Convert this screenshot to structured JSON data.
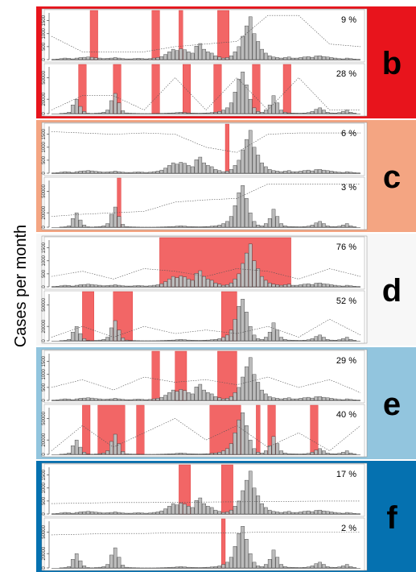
{
  "y_label": "Cases per month",
  "histograms": {
    "top": {
      "ylim": [
        0,
        1800
      ],
      "yticks": [
        0,
        500,
        1000,
        1500
      ],
      "values": [
        10,
        20,
        40,
        60,
        50,
        30,
        60,
        80,
        90,
        100,
        90,
        70,
        60,
        40,
        50,
        60,
        80,
        60,
        40,
        30,
        30,
        40,
        50,
        40,
        30,
        40,
        60,
        80,
        120,
        200,
        300,
        400,
        350,
        420,
        380,
        300,
        250,
        520,
        620,
        400,
        300,
        250,
        150,
        100,
        60,
        80,
        150,
        300,
        500,
        900,
        1300,
        1650,
        1000,
        700,
        400,
        250,
        150,
        100,
        80,
        60,
        80,
        100,
        60,
        60,
        80,
        100,
        120,
        90,
        140,
        150,
        120,
        100,
        80,
        60,
        40,
        30,
        60,
        40,
        20,
        10
      ]
    },
    "bottom": {
      "ylim": [
        0,
        65000
      ],
      "yticks": [
        0,
        20000,
        50000
      ],
      "values": [
        0,
        0,
        200,
        500,
        2000,
        12000,
        20000,
        10000,
        3000,
        500,
        200,
        500,
        1000,
        2000,
        5000,
        18000,
        28000,
        15000,
        4000,
        1000,
        500,
        300,
        200,
        100,
        100,
        100,
        100,
        200,
        300,
        500,
        800,
        1000,
        1500,
        2000,
        1500,
        1000,
        800,
        600,
        500,
        800,
        1000,
        1500,
        2000,
        3000,
        5000,
        8000,
        15000,
        30000,
        48000,
        58000,
        40000,
        20000,
        8000,
        3000,
        2000,
        5000,
        12000,
        25000,
        15000,
        5000,
        2000,
        1000,
        800,
        600,
        500,
        800,
        1500,
        3000,
        6000,
        8000,
        5000,
        2000,
        1000,
        800,
        1500,
        3000,
        5000,
        2000,
        500,
        0
      ]
    }
  },
  "threshold_months": [
    0,
    8,
    16,
    24,
    32,
    40,
    48,
    56,
    64,
    72,
    80
  ],
  "panels": [
    {
      "letter": "b",
      "color": "#e8141c",
      "top": {
        "percent": "9 %",
        "flags": [
          [
            10,
            11
          ],
          [
            26,
            27
          ],
          [
            33,
            33
          ],
          [
            43,
            45
          ]
        ],
        "threshold": [
          900,
          300,
          300,
          300,
          500,
          600,
          700,
          1700,
          1700,
          600,
          500
        ]
      },
      "bottom": {
        "percent": "28 %",
        "flags": [
          [
            7,
            8
          ],
          [
            16,
            17
          ],
          [
            26,
            27
          ],
          [
            34,
            35
          ],
          [
            42,
            43
          ],
          [
            52,
            53
          ],
          [
            60,
            61
          ]
        ],
        "threshold": [
          5000,
          25000,
          25000,
          5000,
          50000,
          5000,
          50000,
          5000,
          50000,
          5000,
          5000
        ]
      }
    },
    {
      "letter": "c",
      "color": "#f4a582",
      "top": {
        "percent": "6 %",
        "flags": [
          [
            45,
            45
          ]
        ],
        "threshold": [
          1600,
          1550,
          1500,
          1550,
          1500,
          1000,
          800,
          1500,
          1550,
          1550,
          1550
        ]
      },
      "bottom": {
        "percent": "3 %",
        "flags": [
          [
            17,
            17
          ]
        ],
        "threshold": [
          15000,
          18000,
          20000,
          22000,
          35000,
          38000,
          40000,
          60000,
          60000,
          60000,
          60000
        ]
      }
    },
    {
      "letter": "d",
      "color": "#f7f7f7",
      "top": {
        "percent": "76 %",
        "flags": [
          [
            28,
            61
          ]
        ],
        "threshold": [
          400,
          600,
          300,
          700,
          600,
          400,
          700,
          600,
          300,
          700,
          400
        ]
      },
      "bottom": {
        "percent": "52 %",
        "flags": [
          [
            8,
            10
          ],
          [
            16,
            20
          ],
          [
            44,
            47
          ]
        ],
        "threshold": [
          5000,
          20000,
          5000,
          20000,
          10000,
          15000,
          10000,
          20000,
          5000,
          30000,
          8000
        ]
      }
    },
    {
      "letter": "e",
      "color": "#92c5de",
      "top": {
        "percent": "29 %",
        "flags": [
          [
            26,
            27
          ],
          [
            32,
            34
          ],
          [
            43,
            47
          ]
        ],
        "threshold": [
          500,
          800,
          400,
          900,
          700,
          800,
          600,
          900,
          500,
          800,
          300
        ]
      },
      "bottom": {
        "percent": "40 %",
        "flags": [
          [
            8,
            9
          ],
          [
            12,
            18
          ],
          [
            22,
            23
          ],
          [
            41,
            48
          ],
          [
            53,
            53
          ],
          [
            56,
            57
          ],
          [
            67,
            68
          ]
        ],
        "threshold": [
          5000,
          40000,
          10000,
          30000,
          50000,
          20000,
          40000,
          10000,
          30000,
          5000,
          40000
        ]
      }
    },
    {
      "letter": "f",
      "color": "#0571b0",
      "top": {
        "percent": "17 %",
        "flags": [
          [
            33,
            35
          ],
          [
            44,
            46
          ]
        ],
        "threshold": [
          400,
          420,
          440,
          440,
          450,
          460,
          470,
          480,
          490,
          500,
          500
        ]
      },
      "bottom": {
        "percent": "2 %",
        "flags": [
          [
            44,
            44
          ]
        ],
        "threshold": [
          46000,
          47000,
          48000,
          48000,
          49000,
          49000,
          49000,
          50000,
          50000,
          50000,
          50000
        ]
      }
    }
  ]
}
